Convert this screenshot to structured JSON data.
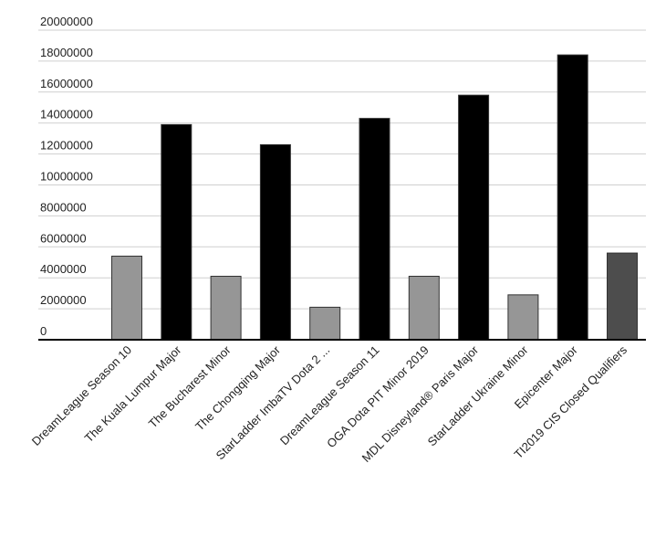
{
  "chart_data": {
    "type": "bar",
    "categories": [
      "DreamLeague Season 10",
      "The Kuala Lumpur Major",
      "The Bucharest Minor",
      "The Chongqing Major",
      "StarLadder ImbaTV Dota 2 ...",
      "DreamLeague Season 11",
      "OGA Dota PIT Minor 2019",
      "MDL Disneyland® Paris Major",
      "StarLadder Ukraine Minor",
      "Epicenter Major",
      "TI2019 CIS Closed Qualifiers"
    ],
    "values": [
      5400000,
      13900000,
      4100000,
      12600000,
      2100000,
      14300000,
      4100000,
      15800000,
      2900000,
      18400000,
      5600000
    ],
    "bar_colors": [
      "#969696",
      "#000000",
      "#969696",
      "#000000",
      "#969696",
      "#000000",
      "#969696",
      "#000000",
      "#969696",
      "#000000",
      "#4d4d4d"
    ],
    "ylim": [
      0,
      20000000
    ],
    "yticks": [
      "0",
      "2000000",
      "4000000",
      "6000000",
      "8000000",
      "10000000",
      "12000000",
      "14000000",
      "16000000",
      "18000000",
      "20000000"
    ],
    "grid": true,
    "legend": "none",
    "title": "",
    "xlabel": "",
    "ylabel": ""
  }
}
